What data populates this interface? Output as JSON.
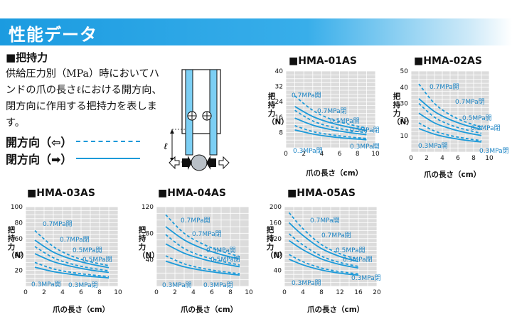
{
  "header": {
    "title": "性能データ"
  },
  "section": {
    "title": "■把持力",
    "description": "供給圧力別（MPa）時においてハンドの爪の長さℓにおける開方向、閉方向に作用する把持力を表します。",
    "legend_open": "開方向（⇦）",
    "legend_closed": "閉方向（➡）"
  },
  "diagram": {
    "label": "ℓ"
  },
  "colors": {
    "accent": "#1c9ad9",
    "banner": "#1b9be0",
    "panel": "#dcdcdc",
    "grid": "#ffffff"
  },
  "chart_data": [
    {
      "type": "line",
      "title": "■HMA-01AS",
      "ylabel": "把持力（N）",
      "xlabel": "爪の長さ（cm）",
      "xlim": [
        0,
        10
      ],
      "ylim": [
        0,
        40
      ],
      "xticks": [
        0,
        2,
        4,
        6,
        8,
        10
      ],
      "yticks": [
        8,
        16,
        24,
        32,
        40
      ],
      "annotations": [
        "0.7MPa開",
        "0.7MPa閉",
        "0.5MPa開",
        "0.5MPa閉",
        "0.3MPa閉",
        "0.3MPa開"
      ],
      "series": [
        {
          "direction": "open",
          "pressure": 0.7,
          "style": "dashed",
          "x": [
            1,
            3,
            5,
            7,
            9
          ],
          "values": [
            27,
            19.5,
            15,
            12.3,
            10.3
          ]
        },
        {
          "direction": "closed",
          "pressure": 0.7,
          "style": "solid",
          "x": [
            1,
            3,
            5,
            7,
            9
          ],
          "values": [
            21.5,
            16.3,
            13,
            10.8,
            9
          ]
        },
        {
          "direction": "open",
          "pressure": 0.5,
          "style": "dashed",
          "x": [
            1,
            3,
            5,
            7,
            9
          ],
          "values": [
            19.5,
            14,
            11,
            9.2,
            7.8
          ]
        },
        {
          "direction": "closed",
          "pressure": 0.5,
          "style": "solid",
          "x": [
            1,
            3,
            5,
            7,
            9
          ],
          "values": [
            15.5,
            11.8,
            9.5,
            8,
            6.8
          ]
        },
        {
          "direction": "open",
          "pressure": 0.3,
          "style": "dashed",
          "x": [
            1,
            3,
            5,
            7,
            9
          ],
          "values": [
            11.5,
            8.5,
            6.8,
            5.7,
            4.8
          ]
        },
        {
          "direction": "closed",
          "pressure": 0.3,
          "style": "solid",
          "x": [
            1,
            3,
            5,
            7,
            9
          ],
          "values": [
            9.3,
            7.2,
            5.8,
            4.9,
            4.2
          ]
        }
      ]
    },
    {
      "type": "line",
      "title": "■HMA-02AS",
      "ylabel": "把持力（N）",
      "xlabel": "爪の長さ（cm）",
      "xlim": [
        0,
        10
      ],
      "ylim": [
        0,
        50
      ],
      "xticks": [
        0,
        2,
        4,
        6,
        8,
        10
      ],
      "yticks": [
        10,
        20,
        30,
        40,
        50
      ],
      "annotations": [
        "0.7MPa開",
        "0.7MPa閉",
        "0.5MPa開",
        "0.5MPa閉",
        "0.3MPa開",
        "0.3MPa閉"
      ],
      "series": [
        {
          "direction": "open",
          "pressure": 0.7,
          "style": "dashed",
          "x": [
            1,
            3,
            5,
            7,
            9
          ],
          "values": [
            42,
            30,
            23,
            18.5,
            15.5
          ]
        },
        {
          "direction": "closed",
          "pressure": 0.7,
          "style": "solid",
          "x": [
            1,
            3,
            5,
            7,
            9
          ],
          "values": [
            33,
            25,
            20,
            16.5,
            14
          ]
        },
        {
          "direction": "open",
          "pressure": 0.5,
          "style": "dashed",
          "x": [
            1,
            3,
            5,
            7,
            9
          ],
          "values": [
            30,
            21.5,
            16.8,
            13.8,
            11.6
          ]
        },
        {
          "direction": "closed",
          "pressure": 0.5,
          "style": "solid",
          "x": [
            1,
            3,
            5,
            7,
            9
          ],
          "values": [
            24,
            18,
            14.5,
            12,
            10.2
          ]
        },
        {
          "direction": "open",
          "pressure": 0.3,
          "style": "dashed",
          "x": [
            1,
            3,
            5,
            7,
            9
          ],
          "values": [
            18,
            13,
            10.2,
            8.4,
            7
          ]
        },
        {
          "direction": "closed",
          "pressure": 0.3,
          "style": "solid",
          "x": [
            1,
            3,
            5,
            7,
            9
          ],
          "values": [
            14.5,
            11,
            8.8,
            7.3,
            6.2
          ]
        }
      ]
    },
    {
      "type": "line",
      "title": "■HMA-03AS",
      "ylabel": "把持力（N）",
      "xlabel": "爪の長さ（cm）",
      "xlim": [
        0,
        10
      ],
      "ylim": [
        0,
        100
      ],
      "xticks": [
        0,
        2,
        4,
        6,
        8,
        10
      ],
      "yticks": [
        20,
        40,
        60,
        80,
        100
      ],
      "annotations": [
        "0.7MPa開",
        "0.7MPa閉",
        "0.5MPa開",
        "0.5MPa閉",
        "0.3MPa開",
        "0.3MPa閉"
      ],
      "series": [
        {
          "direction": "open",
          "pressure": 0.7,
          "style": "dashed",
          "x": [
            1,
            3,
            5,
            7,
            9
          ],
          "values": [
            70,
            50,
            38,
            31,
            26
          ]
        },
        {
          "direction": "closed",
          "pressure": 0.7,
          "style": "solid",
          "x": [
            1,
            3,
            5,
            7,
            9
          ],
          "values": [
            58,
            43,
            34,
            28,
            23.5
          ]
        },
        {
          "direction": "open",
          "pressure": 0.5,
          "style": "dashed",
          "x": [
            1,
            3,
            5,
            7,
            9
          ],
          "values": [
            50,
            36,
            28,
            23,
            19.5
          ]
        },
        {
          "direction": "closed",
          "pressure": 0.5,
          "style": "solid",
          "x": [
            1,
            3,
            5,
            7,
            9
          ],
          "values": [
            41,
            31,
            25,
            20.5,
            17.5
          ]
        },
        {
          "direction": "open",
          "pressure": 0.3,
          "style": "dashed",
          "x": [
            1,
            3,
            5,
            7,
            9
          ],
          "values": [
            30,
            22,
            17.5,
            14.5,
            12.2
          ]
        },
        {
          "direction": "closed",
          "pressure": 0.3,
          "style": "solid",
          "x": [
            1,
            3,
            5,
            7,
            9
          ],
          "values": [
            24,
            18.5,
            15,
            12.5,
            10.6
          ]
        }
      ]
    },
    {
      "type": "line",
      "title": "■HMA-04AS",
      "ylabel": "把持力（N）",
      "xlabel": "爪の長さ（cm）",
      "xlim": [
        0,
        10
      ],
      "ylim": [
        0,
        120
      ],
      "xticks": [
        0,
        2,
        4,
        6,
        8,
        10
      ],
      "yticks": [
        40,
        80,
        120
      ],
      "annotations": [
        "0.7MPa開",
        "0.7MPa閉",
        "0.5MPa開",
        "0.5MPa閉",
        "0.3MPa開",
        "0.3MPa閉"
      ],
      "series": [
        {
          "direction": "open",
          "pressure": 0.7,
          "style": "dashed",
          "x": [
            1,
            3,
            5,
            7,
            9
          ],
          "values": [
            108,
            80,
            64,
            53,
            45
          ]
        },
        {
          "direction": "closed",
          "pressure": 0.7,
          "style": "solid",
          "x": [
            1,
            3,
            5,
            7,
            9
          ],
          "values": [
            90,
            70,
            57,
            48,
            41
          ]
        },
        {
          "direction": "open",
          "pressure": 0.5,
          "style": "dashed",
          "x": [
            1,
            3,
            5,
            7,
            9
          ],
          "values": [
            78,
            57,
            45.5,
            38,
            32
          ]
        },
        {
          "direction": "closed",
          "pressure": 0.5,
          "style": "solid",
          "x": [
            1,
            3,
            5,
            7,
            9
          ],
          "values": [
            64,
            50,
            41,
            34.5,
            29.5
          ]
        },
        {
          "direction": "open",
          "pressure": 0.3,
          "style": "dashed",
          "x": [
            1,
            3,
            5,
            7,
            9
          ],
          "values": [
            46,
            34,
            27,
            22.5,
            19
          ]
        },
        {
          "direction": "closed",
          "pressure": 0.3,
          "style": "solid",
          "x": [
            1,
            3,
            5,
            7,
            9
          ],
          "values": [
            38,
            29.5,
            24,
            20,
            17
          ]
        }
      ]
    },
    {
      "type": "line",
      "title": "■HMA-05AS",
      "ylabel": "把持力（N）",
      "xlabel": "爪の長さ（cm）",
      "xlim": [
        0,
        20
      ],
      "ylim": [
        0,
        200
      ],
      "xticks": [
        0,
        4,
        8,
        12,
        16,
        20
      ],
      "yticks": [
        40,
        80,
        120,
        160,
        200
      ],
      "annotations": [
        "0.7MPa開",
        "0.7MPa閉",
        "0.5MPa開",
        "0.5MPa閉",
        "0.3MPa開",
        "0.3MPa閉"
      ],
      "series": [
        {
          "direction": "open",
          "pressure": 0.7,
          "style": "dashed",
          "x": [
            1,
            4,
            8,
            12,
            16
          ],
          "values": [
            185,
            145,
            105,
            82,
            68
          ]
        },
        {
          "direction": "closed",
          "pressure": 0.7,
          "style": "solid",
          "x": [
            1,
            4,
            8,
            12,
            16
          ],
          "values": [
            160,
            128,
            95,
            75,
            62
          ]
        },
        {
          "direction": "open",
          "pressure": 0.5,
          "style": "dashed",
          "x": [
            1,
            4,
            8,
            12,
            16
          ],
          "values": [
            132,
            104,
            76,
            60,
            50
          ]
        },
        {
          "direction": "closed",
          "pressure": 0.5,
          "style": "solid",
          "x": [
            1,
            4,
            8,
            12,
            16
          ],
          "values": [
            115,
            92,
            69,
            55,
            46
          ]
        },
        {
          "direction": "open",
          "pressure": 0.3,
          "style": "dashed",
          "x": [
            1,
            4,
            8,
            12,
            16
          ],
          "values": [
            80,
            62,
            46,
            37,
            31
          ]
        },
        {
          "direction": "closed",
          "pressure": 0.3,
          "style": "solid",
          "x": [
            1,
            4,
            8,
            12,
            16
          ],
          "values": [
            68,
            54,
            41,
            33,
            28
          ]
        }
      ]
    }
  ]
}
